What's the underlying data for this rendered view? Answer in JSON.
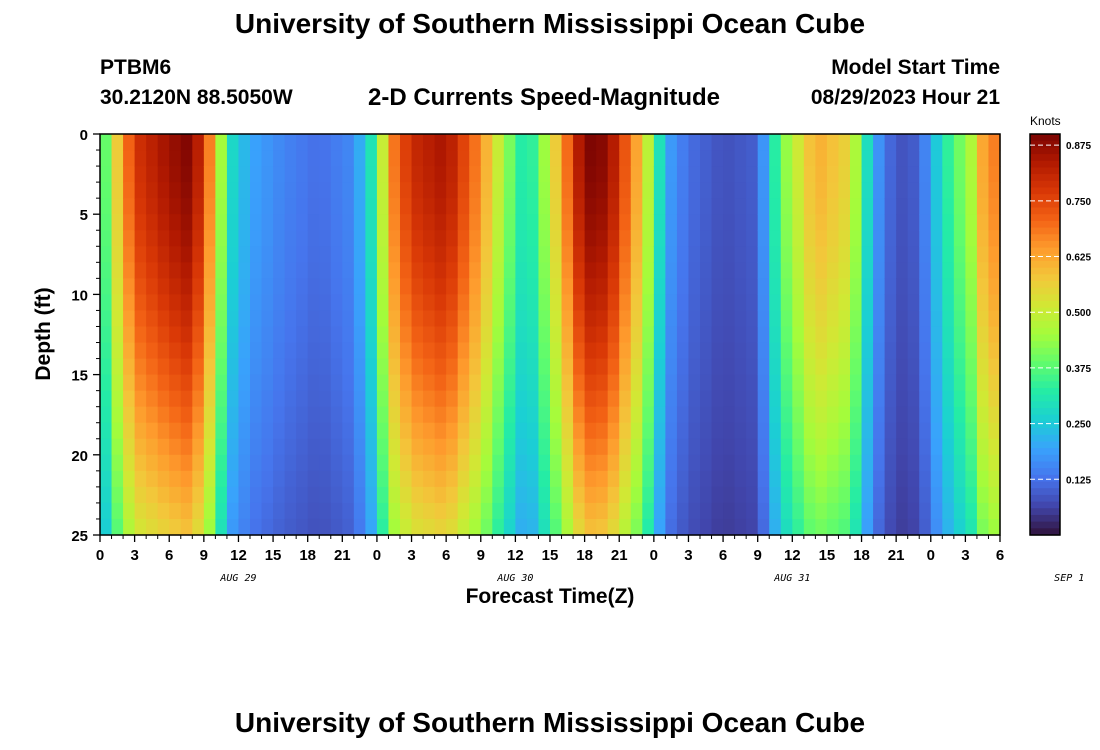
{
  "header": {
    "title": "University of Southern Mississippi Ocean Cube",
    "station_id": "PTBM6",
    "station_coords": "30.2120N  88.5050W",
    "subtitle": "2-D Currents Speed-Magnitude",
    "start_label": "Model Start Time",
    "start_value": "08/29/2023 Hour 21"
  },
  "footer": {
    "title": "University of Southern Mississippi Ocean Cube"
  },
  "chart_data": {
    "type": "heatmap",
    "xlabel": "Forecast Time(Z)",
    "ylabel": "Depth (ft)",
    "x_ticks": [
      "0",
      "3",
      "6",
      "9",
      "12",
      "15",
      "18",
      "21",
      "0",
      "3",
      "6",
      "9",
      "12",
      "15",
      "18",
      "21",
      "0",
      "3",
      "6",
      "9",
      "12",
      "15",
      "18",
      "21",
      "0",
      "3",
      "6"
    ],
    "x_dates": [
      "AUG 29",
      "AUG 30",
      "AUG 31",
      "SEP 1"
    ],
    "x_range_hours": [
      0,
      78
    ],
    "y_range_ft": [
      0,
      25
    ],
    "y_ticks": [
      0,
      5,
      10,
      15,
      20,
      25
    ],
    "colorbar": {
      "label": "Knots",
      "range": [
        0,
        0.9
      ],
      "ticks": [
        "0.875",
        "0.750",
        "0.625",
        "0.500",
        "0.375",
        "0.250",
        "0.125"
      ],
      "colors": [
        "#30123b",
        "#4145ab",
        "#4675ed",
        "#39a2fc",
        "#1bcfd4",
        "#24eca6",
        "#61fc6c",
        "#a4fc3b",
        "#d1e834",
        "#f3c63a",
        "#fe9b2d",
        "#f36315",
        "#d93806",
        "#b11901",
        "#7a0402"
      ]
    },
    "depth_profile": [
      {
        "hour": 0,
        "speed": 0.28
      },
      {
        "hour": 1,
        "speed": 0.5
      },
      {
        "hour": 3,
        "speed": 0.78
      },
      {
        "hour": 6,
        "speed": 0.86
      },
      {
        "hour": 8,
        "speed": 0.9
      },
      {
        "hour": 10,
        "speed": 0.6
      },
      {
        "hour": 11,
        "speed": 0.3
      },
      {
        "hour": 13,
        "speed": 0.2
      },
      {
        "hour": 16,
        "speed": 0.15
      },
      {
        "hour": 19,
        "speed": 0.12
      },
      {
        "hour": 22,
        "speed": 0.16
      },
      {
        "hour": 24,
        "speed": 0.35
      },
      {
        "hour": 25,
        "speed": 0.65
      },
      {
        "hour": 27,
        "speed": 0.8
      },
      {
        "hour": 30,
        "speed": 0.85
      },
      {
        "hour": 33,
        "speed": 0.66
      },
      {
        "hour": 35,
        "speed": 0.45
      },
      {
        "hour": 37,
        "speed": 0.28
      },
      {
        "hour": 39,
        "speed": 0.5
      },
      {
        "hour": 42,
        "speed": 0.9
      },
      {
        "hour": 44,
        "speed": 0.88
      },
      {
        "hour": 47,
        "speed": 0.58
      },
      {
        "hour": 49,
        "speed": 0.2
      },
      {
        "hour": 51,
        "speed": 0.12
      },
      {
        "hour": 54,
        "speed": 0.08
      },
      {
        "hour": 57,
        "speed": 0.1
      },
      {
        "hour": 59,
        "speed": 0.4
      },
      {
        "hour": 62,
        "speed": 0.62
      },
      {
        "hour": 65,
        "speed": 0.55
      },
      {
        "hour": 67,
        "speed": 0.2
      },
      {
        "hour": 69,
        "speed": 0.08
      },
      {
        "hour": 71,
        "speed": 0.1
      },
      {
        "hour": 73,
        "speed": 0.3
      },
      {
        "hour": 76,
        "speed": 0.5
      },
      {
        "hour": 77,
        "speed": 0.75
      },
      {
        "hour": 78,
        "speed": 0.6
      }
    ]
  }
}
